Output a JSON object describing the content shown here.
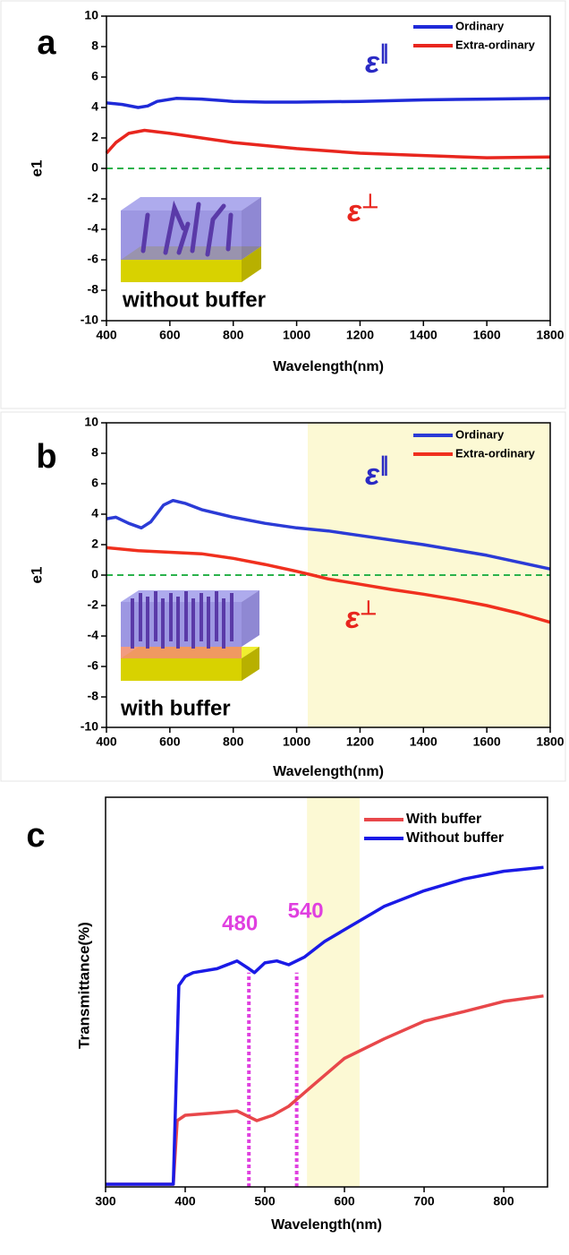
{
  "chart_data": [
    {
      "type": "line",
      "label": "a",
      "y_label": "e1",
      "x_label": "Wavelength(nm)",
      "caption": "without buffer",
      "xlim": [
        400,
        1800
      ],
      "xticks": [
        400,
        600,
        800,
        1000,
        1200,
        1400,
        1600,
        1800
      ],
      "ylim": [
        -10,
        10
      ],
      "yticks": [
        -10,
        -8,
        -6,
        -4,
        -2,
        0,
        2,
        4,
        6,
        8,
        10
      ],
      "hline": 0,
      "hline_color": "#2bb24c",
      "legend": "upper right",
      "annotations": [
        {
          "symbol": "ε",
          "superscript": "∥",
          "color": "#2a2ac4"
        },
        {
          "symbol": "ε",
          "superscript": "⊥",
          "color": "#e8261e"
        }
      ],
      "series": [
        {
          "name": "Ordinary",
          "color": "#1f2ad8",
          "x": [
            400,
            450,
            500,
            530,
            560,
            620,
            700,
            800,
            900,
            1000,
            1200,
            1400,
            1600,
            1800
          ],
          "values": [
            4.3,
            4.2,
            4.0,
            4.1,
            4.4,
            4.6,
            4.55,
            4.4,
            4.35,
            4.35,
            4.4,
            4.5,
            4.55,
            4.6
          ]
        },
        {
          "name": "Extra-ordinary",
          "color": "#e8261e",
          "x": [
            400,
            430,
            470,
            520,
            600,
            700,
            800,
            1000,
            1200,
            1400,
            1600,
            1800
          ],
          "values": [
            1.0,
            1.7,
            2.3,
            2.5,
            2.3,
            2.0,
            1.7,
            1.3,
            1.0,
            0.85,
            0.7,
            0.75
          ]
        }
      ]
    },
    {
      "type": "line",
      "label": "b",
      "y_label": "e1",
      "x_label": "Wavelength(nm)",
      "caption": "with buffer",
      "xlim": [
        400,
        1800
      ],
      "xticks": [
        400,
        600,
        800,
        1000,
        1200,
        1400,
        1600,
        1800
      ],
      "ylim": [
        -10,
        10
      ],
      "yticks": [
        -10,
        -8,
        -6,
        -4,
        -2,
        0,
        2,
        4,
        6,
        8,
        10
      ],
      "hline": 0,
      "hline_color": "#2bb24c",
      "legend": "upper right",
      "highlight": [
        1035,
        1800
      ],
      "highlight_color": "#fcf9d4",
      "annotations": [
        {
          "symbol": "ε",
          "superscript": "∥",
          "color": "#2a2ac4"
        },
        {
          "symbol": "ε",
          "superscript": "⊥",
          "color": "#e8261e"
        }
      ],
      "series": [
        {
          "name": "Ordinary",
          "color": "#2b3bd6",
          "x": [
            400,
            430,
            470,
            510,
            540,
            580,
            610,
            650,
            700,
            800,
            900,
            1000,
            1100,
            1200,
            1400,
            1600,
            1800
          ],
          "values": [
            3.7,
            3.8,
            3.4,
            3.1,
            3.5,
            4.6,
            4.9,
            4.7,
            4.3,
            3.8,
            3.4,
            3.1,
            2.9,
            2.6,
            2.0,
            1.3,
            0.4
          ]
        },
        {
          "name": "Extra-ordinary",
          "color": "#f0301e",
          "x": [
            400,
            500,
            600,
            700,
            800,
            900,
            1000,
            1050,
            1100,
            1200,
            1300,
            1400,
            1500,
            1600,
            1700,
            1800
          ],
          "values": [
            1.8,
            1.6,
            1.5,
            1.4,
            1.1,
            0.7,
            0.25,
            0.0,
            -0.25,
            -0.6,
            -0.95,
            -1.25,
            -1.6,
            -2.0,
            -2.5,
            -3.1
          ]
        }
      ]
    },
    {
      "type": "line",
      "label": "c",
      "y_label": "Transmittance(%)",
      "x_label": "Wavelength(nm)",
      "xlim": [
        300,
        855
      ],
      "xticks": [
        300,
        400,
        500,
        600,
        700,
        800
      ],
      "ylim": [
        0,
        100
      ],
      "yticks": [],
      "legend": "upper right",
      "highlight": [
        553,
        619
      ],
      "highlight_color": "#fcf9d4",
      "markers": [
        480,
        540
      ],
      "marker_color": "#e040e0",
      "series": [
        {
          "name": "With buffer",
          "color": "#e8474a",
          "x": [
            300,
            385,
            390,
            400,
            440,
            465,
            490,
            510,
            530,
            560,
            600,
            650,
            700,
            750,
            800,
            850
          ],
          "values": [
            0.7,
            0.7,
            17,
            18.4,
            19,
            19.5,
            17,
            18.4,
            20.7,
            26,
            33,
            38,
            42.5,
            45,
            47.6,
            49
          ]
        },
        {
          "name": "Without buffer",
          "color": "#1a1ae6",
          "x": [
            300,
            385,
            392,
            400,
            410,
            440,
            465,
            480,
            487,
            500,
            515,
            530,
            550,
            575,
            600,
            650,
            700,
            750,
            800,
            850
          ],
          "values": [
            0.7,
            0.7,
            51.7,
            54,
            55,
            56,
            58,
            56,
            55,
            57.5,
            58,
            57,
            59,
            63,
            66,
            72,
            76,
            79,
            81,
            82
          ]
        }
      ]
    }
  ]
}
